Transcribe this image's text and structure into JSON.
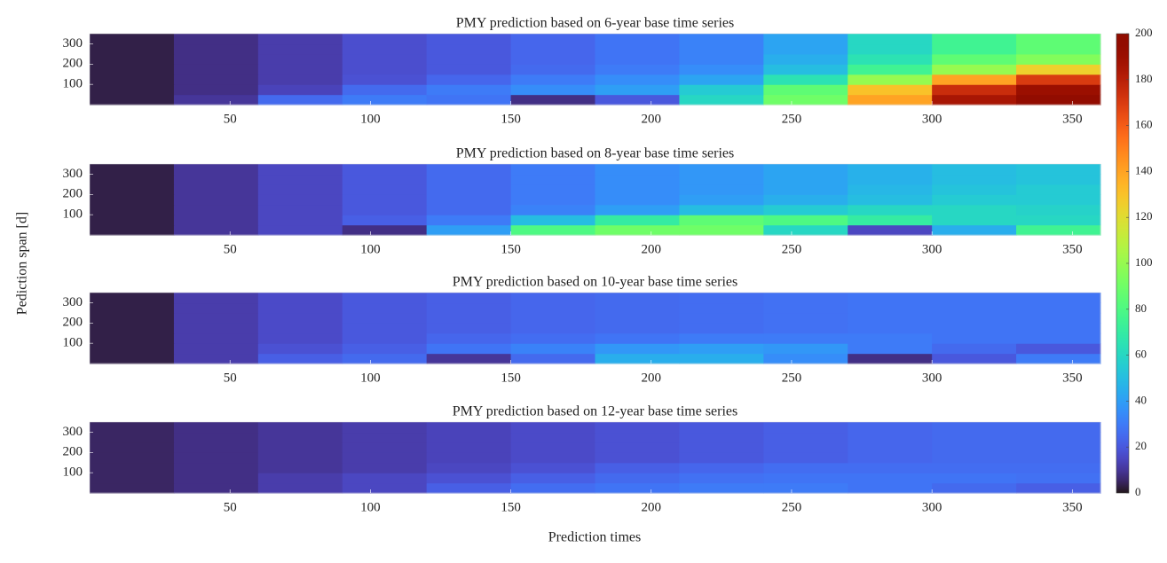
{
  "chart_data": [
    {
      "type": "heatmap",
      "title": "PMY prediction based on 6-year base time series",
      "x": [
        15,
        45,
        75,
        105,
        135,
        165,
        195,
        225,
        255,
        285,
        315,
        345
      ],
      "y": [
        25,
        75,
        125,
        175,
        225,
        275,
        325
      ],
      "z": [
        [
          3,
          10,
          25,
          30,
          28,
          8,
          20,
          60,
          90,
          140,
          185,
          195
        ],
        [
          3,
          8,
          14,
          25,
          30,
          35,
          40,
          55,
          85,
          130,
          175,
          190
        ],
        [
          3,
          8,
          12,
          18,
          24,
          30,
          35,
          42,
          65,
          100,
          140,
          170
        ],
        [
          3,
          8,
          12,
          17,
          20,
          25,
          30,
          35,
          50,
          75,
          100,
          125
        ],
        [
          3,
          8,
          12,
          17,
          20,
          24,
          28,
          32,
          45,
          65,
          85,
          95
        ],
        [
          3,
          8,
          12,
          17,
          20,
          24,
          28,
          32,
          42,
          60,
          75,
          85
        ],
        [
          3,
          8,
          12,
          17,
          20,
          24,
          28,
          32,
          42,
          60,
          75,
          85
        ]
      ],
      "xlim": [
        0,
        360
      ],
      "ylim": [
        0,
        350
      ],
      "xticks": [
        50,
        100,
        150,
        200,
        250,
        300,
        350
      ],
      "yticks": [
        100,
        200,
        300
      ]
    },
    {
      "type": "heatmap",
      "title": "PMY prediction based on 8-year base time series",
      "x": [
        15,
        45,
        75,
        105,
        135,
        165,
        195,
        225,
        255,
        285,
        315,
        345
      ],
      "y": [
        25,
        75,
        125,
        175,
        225,
        275,
        325
      ],
      "z": [
        [
          3,
          10,
          15,
          8,
          40,
          80,
          90,
          90,
          60,
          15,
          45,
          75
        ],
        [
          3,
          10,
          15,
          22,
          30,
          50,
          70,
          85,
          80,
          70,
          60,
          60
        ],
        [
          3,
          10,
          15,
          20,
          25,
          32,
          40,
          50,
          55,
          60,
          60,
          58
        ],
        [
          3,
          10,
          15,
          20,
          25,
          30,
          35,
          40,
          45,
          50,
          55,
          55
        ],
        [
          3,
          10,
          15,
          20,
          25,
          30,
          35,
          38,
          42,
          48,
          52,
          55
        ],
        [
          3,
          10,
          15,
          20,
          25,
          30,
          35,
          38,
          42,
          46,
          50,
          52
        ],
        [
          3,
          10,
          15,
          20,
          25,
          30,
          35,
          38,
          42,
          46,
          50,
          52
        ]
      ],
      "xlim": [
        0,
        360
      ],
      "ylim": [
        0,
        350
      ],
      "xticks": [
        50,
        100,
        150,
        200,
        250,
        300,
        350
      ],
      "yticks": [
        100,
        200,
        300
      ]
    },
    {
      "type": "heatmap",
      "title": "PMY prediction based on 10-year base time series",
      "x": [
        15,
        45,
        75,
        105,
        135,
        165,
        195,
        225,
        255,
        285,
        315,
        345
      ],
      "y": [
        25,
        75,
        125,
        175,
        225,
        275,
        325
      ],
      "z": [
        [
          3,
          12,
          22,
          25,
          10,
          25,
          45,
          45,
          35,
          8,
          20,
          30
        ],
        [
          3,
          12,
          18,
          22,
          28,
          32,
          38,
          40,
          38,
          30,
          25,
          20
        ],
        [
          3,
          12,
          16,
          20,
          24,
          26,
          28,
          30,
          30,
          30,
          28,
          28
        ],
        [
          3,
          12,
          16,
          20,
          22,
          24,
          25,
          26,
          27,
          28,
          28,
          28
        ],
        [
          3,
          12,
          16,
          20,
          22,
          24,
          25,
          26,
          27,
          28,
          28,
          28
        ],
        [
          3,
          12,
          16,
          20,
          22,
          24,
          25,
          26,
          27,
          28,
          28,
          28
        ],
        [
          3,
          12,
          16,
          20,
          22,
          24,
          25,
          26,
          27,
          28,
          28,
          28
        ]
      ],
      "xlim": [
        0,
        360
      ],
      "ylim": [
        0,
        350
      ],
      "xticks": [
        50,
        100,
        150,
        200,
        250,
        300,
        350
      ],
      "yticks": [
        100,
        200,
        300
      ]
    },
    {
      "type": "heatmap",
      "title": "PMY prediction based on 12-year base time series",
      "x": [
        15,
        45,
        75,
        105,
        135,
        165,
        195,
        225,
        255,
        285,
        315,
        345
      ],
      "y": [
        25,
        75,
        125,
        175,
        225,
        275,
        325
      ],
      "z": [
        [
          5,
          8,
          12,
          15,
          22,
          26,
          28,
          30,
          30,
          28,
          25,
          22
        ],
        [
          5,
          8,
          12,
          15,
          18,
          22,
          25,
          27,
          28,
          28,
          28,
          27
        ],
        [
          5,
          8,
          10,
          12,
          15,
          18,
          22,
          24,
          26,
          26,
          26,
          26
        ],
        [
          5,
          8,
          10,
          12,
          14,
          16,
          18,
          20,
          22,
          24,
          25,
          25
        ],
        [
          5,
          8,
          10,
          12,
          14,
          16,
          18,
          20,
          22,
          24,
          25,
          25
        ],
        [
          5,
          8,
          10,
          12,
          14,
          16,
          18,
          20,
          22,
          24,
          25,
          25
        ],
        [
          5,
          8,
          10,
          12,
          14,
          16,
          18,
          20,
          22,
          24,
          25,
          25
        ]
      ],
      "xlim": [
        0,
        360
      ],
      "ylim": [
        0,
        350
      ],
      "xticks": [
        50,
        100,
        150,
        200,
        250,
        300,
        350
      ],
      "yticks": [
        100,
        200,
        300
      ]
    }
  ],
  "xlabel": "Prediction times",
  "ylabel": "Pediction span [d]",
  "colorbar": {
    "colormap": "turbo",
    "clim": [
      0,
      200
    ],
    "ticks": [
      0,
      20,
      40,
      60,
      80,
      100,
      120,
      140,
      160,
      180,
      200
    ]
  }
}
